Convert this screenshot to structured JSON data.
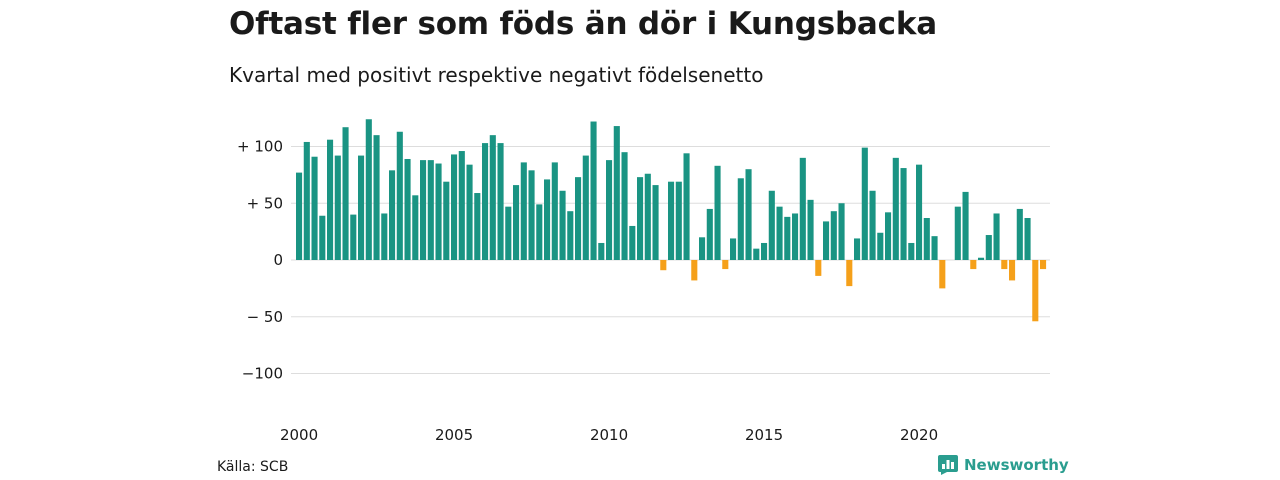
{
  "title": "Oftast fler som föds än dör i Kungsbacka",
  "subtitle": "Kvartal med positivt respektive negativt födelsenetto",
  "source": "Källa: SCB",
  "brand": "Newsworthy",
  "colors": {
    "positive": "#1a9483",
    "negative": "#f5a01a",
    "grid": "#dddddd",
    "brand": "#2a9d8f"
  },
  "chart_data": {
    "type": "bar",
    "title": "Oftast fler som föds än dör i Kungsbacka",
    "subtitle": "Kvartal med positivt respektive negativt födelsenetto",
    "x_start": 2000,
    "periods_per_year": 4,
    "ylim": [
      -100,
      125
    ],
    "yticks": [
      100,
      50,
      0,
      -50,
      -100
    ],
    "ytick_labels": [
      "+ 100",
      "+  50",
      "0",
      "− 50",
      "−100"
    ],
    "xticks": [
      2000,
      2005,
      2010,
      2015,
      2020
    ],
    "xtick_labels": [
      "2000",
      "2005",
      "2010",
      "2015",
      "2020"
    ],
    "grid": true,
    "values": [
      77,
      104,
      91,
      39,
      106,
      92,
      117,
      40,
      92,
      124,
      110,
      41,
      79,
      113,
      89,
      57,
      88,
      88,
      85,
      69,
      93,
      96,
      84,
      59,
      103,
      110,
      103,
      47,
      66,
      86,
      79,
      49,
      71,
      86,
      61,
      43,
      73,
      92,
      122,
      15,
      88,
      118,
      95,
      30,
      73,
      76,
      66,
      -9,
      69,
      69,
      94,
      -18,
      20,
      45,
      83,
      -8,
      19,
      72,
      80,
      10,
      15,
      61,
      47,
      38,
      41,
      90,
      53,
      -14,
      34,
      43,
      50,
      -23,
      19,
      99,
      61,
      24,
      42,
      90,
      81,
      15,
      84,
      37,
      21,
      -25,
      0,
      47,
      60,
      -8,
      2,
      22,
      41,
      -8,
      -18,
      45,
      37,
      -54,
      -8
    ]
  }
}
